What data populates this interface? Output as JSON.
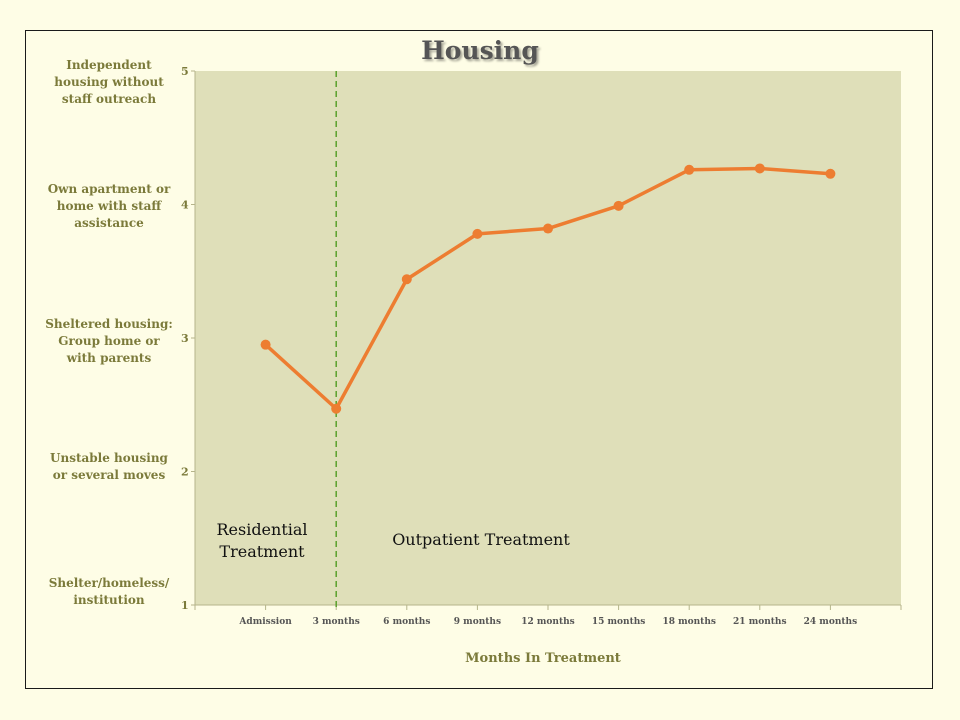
{
  "chart_data": {
    "type": "line",
    "title": "Housing",
    "xlabel": "Months In Treatment",
    "ylabel": "",
    "categories": [
      "Admission",
      "3 months",
      "6 months",
      "9 months",
      "12 months",
      "15 months",
      "18 months",
      "21 months",
      "24 months"
    ],
    "series": [
      {
        "values": [
          2.95,
          2.47,
          3.44,
          3.78,
          3.82,
          3.99,
          4.26,
          4.27,
          4.23
        ]
      }
    ],
    "ylim": [
      1,
      5
    ],
    "yticks": [
      "1",
      "2",
      "3",
      "4",
      "5"
    ],
    "y_category_labels": [
      {
        "value": 5,
        "text": "Independent housing without staff outreach"
      },
      {
        "value": 4,
        "text": "Own apartment or home with staff assistance"
      },
      {
        "value": 3,
        "text": "Sheltered housing: Group home or with parents"
      },
      {
        "value": 2,
        "text": "Unstable housing or several moves"
      },
      {
        "value": 1,
        "text": "Shelter/homeless/ institution"
      }
    ],
    "annotations": {
      "divider_after_category": "3 months",
      "residential_label": "Residential Treatment",
      "outpatient_label": "Outpatient Treatment"
    },
    "grid": false,
    "colors": {
      "line": "#ed7d31",
      "plot_background": "#dfdfb9",
      "divider": "#5aa02c",
      "label_text": "#7b7a3a"
    }
  }
}
